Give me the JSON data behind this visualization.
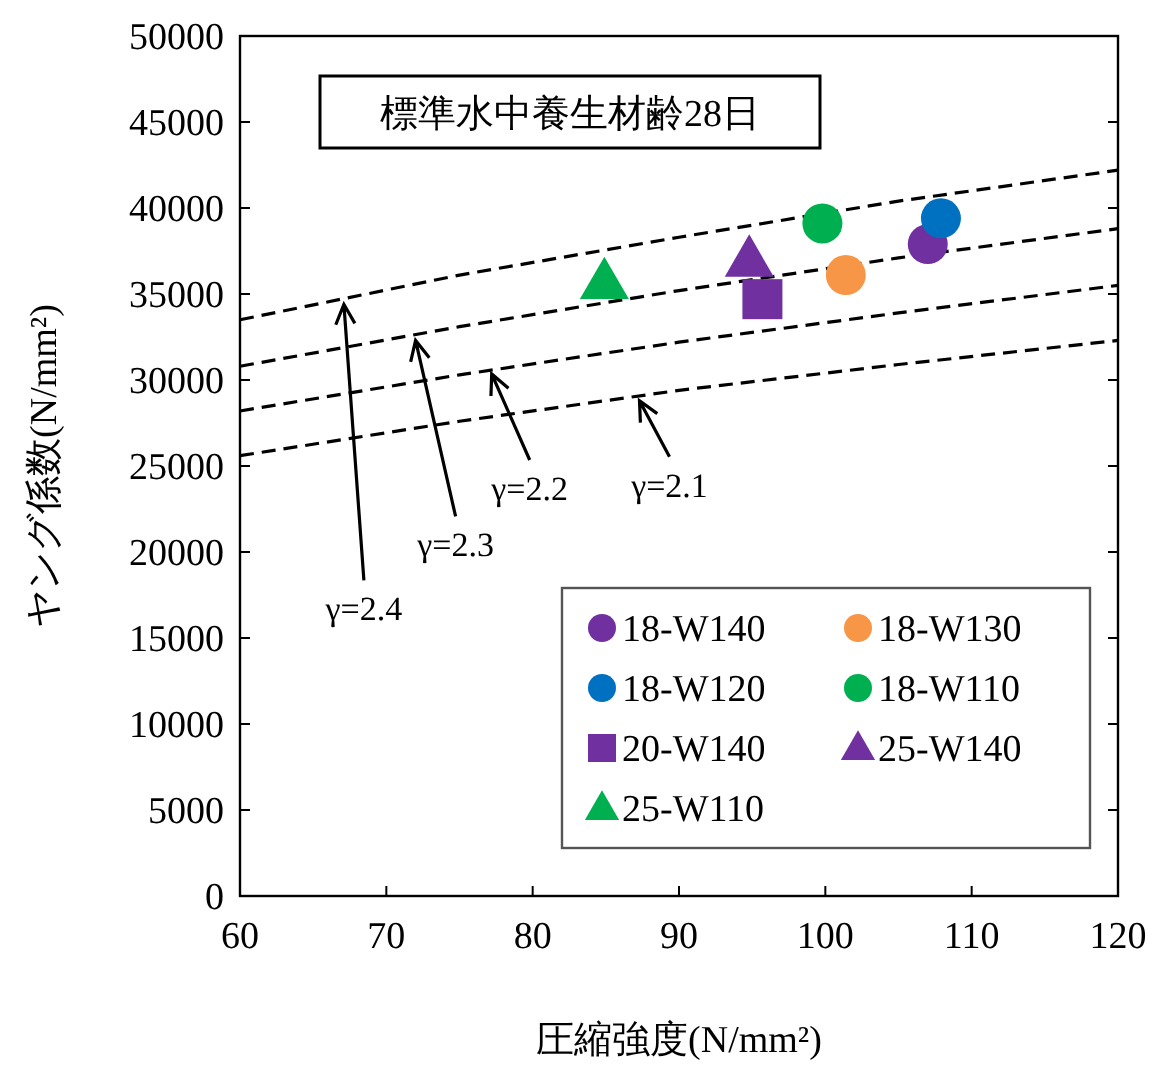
{
  "chart_data": {
    "type": "scatter",
    "title": "標準水中養生材齢28日",
    "xlabel": "圧縮強度(N/mm²)",
    "ylabel": "ヤング係数(N/mm²)",
    "xlim": [
      60,
      120
    ],
    "xticks": [
      60,
      70,
      80,
      90,
      100,
      110,
      120
    ],
    "ylim": [
      0,
      50000
    ],
    "yticks": [
      0,
      5000,
      10000,
      15000,
      20000,
      25000,
      30000,
      35000,
      40000,
      45000,
      50000
    ],
    "grid": false,
    "legend": "bottom right",
    "series": [
      {
        "name": "18-W140",
        "color": "#7030a0",
        "marker": "circle",
        "x": [
          107.0
        ],
        "values": [
          37900
        ]
      },
      {
        "name": "18-W130",
        "color": "#f79646",
        "marker": "circle",
        "x": [
          101.4
        ],
        "values": [
          36100
        ]
      },
      {
        "name": "18-W120",
        "color": "#0070c0",
        "marker": "circle",
        "x": [
          107.9
        ],
        "values": [
          39400
        ]
      },
      {
        "name": "18-W110",
        "color": "#00b050",
        "marker": "circle",
        "x": [
          99.8
        ],
        "values": [
          39100
        ]
      },
      {
        "name": "20-W140",
        "color": "#7030a0",
        "marker": "square",
        "x": [
          95.7
        ],
        "values": [
          34700
        ]
      },
      {
        "name": "25-W140",
        "color": "#7030a0",
        "marker": "triangle",
        "x": [
          94.8
        ],
        "values": [
          37000
        ]
      },
      {
        "name": "25-W110",
        "color": "#00b050",
        "marker": "triangle",
        "x": [
          84.9
        ],
        "values": [
          35700
        ]
      },
      {
        "type": "line",
        "color": "#000000",
        "line_style": "dashed",
        "marker": "none",
        "x": [
          60,
          75,
          90,
          105,
          120
        ],
        "values": [
          33500,
          36100,
          38300,
          40400,
          42200
        ]
      },
      {
        "type": "line",
        "color": "#000000",
        "line_style": "dashed",
        "marker": "none",
        "x": [
          60,
          75,
          90,
          105,
          120
        ],
        "values": [
          30800,
          33100,
          35200,
          37100,
          38800
        ]
      },
      {
        "type": "line",
        "color": "#000000",
        "line_style": "dashed",
        "marker": "none",
        "x": [
          60,
          75,
          90,
          105,
          120
        ],
        "values": [
          28200,
          30300,
          32200,
          33900,
          35500
        ]
      },
      {
        "type": "line",
        "color": "#000000",
        "line_style": "dashed",
        "marker": "none",
        "x": [
          60,
          75,
          90,
          105,
          120
        ],
        "values": [
          25600,
          27600,
          29400,
          30900,
          32300
        ]
      }
    ],
    "annotations": [
      {
        "text": "γ=2.4",
        "x": 67.1,
        "y": 34400
      },
      {
        "text": "γ=2.3",
        "x": 72.0,
        "y": 32300
      },
      {
        "text": "γ=2.2",
        "x": 77.2,
        "y": 30350
      },
      {
        "text": "γ=2.1",
        "x": 87.3,
        "y": 28800
      }
    ]
  }
}
